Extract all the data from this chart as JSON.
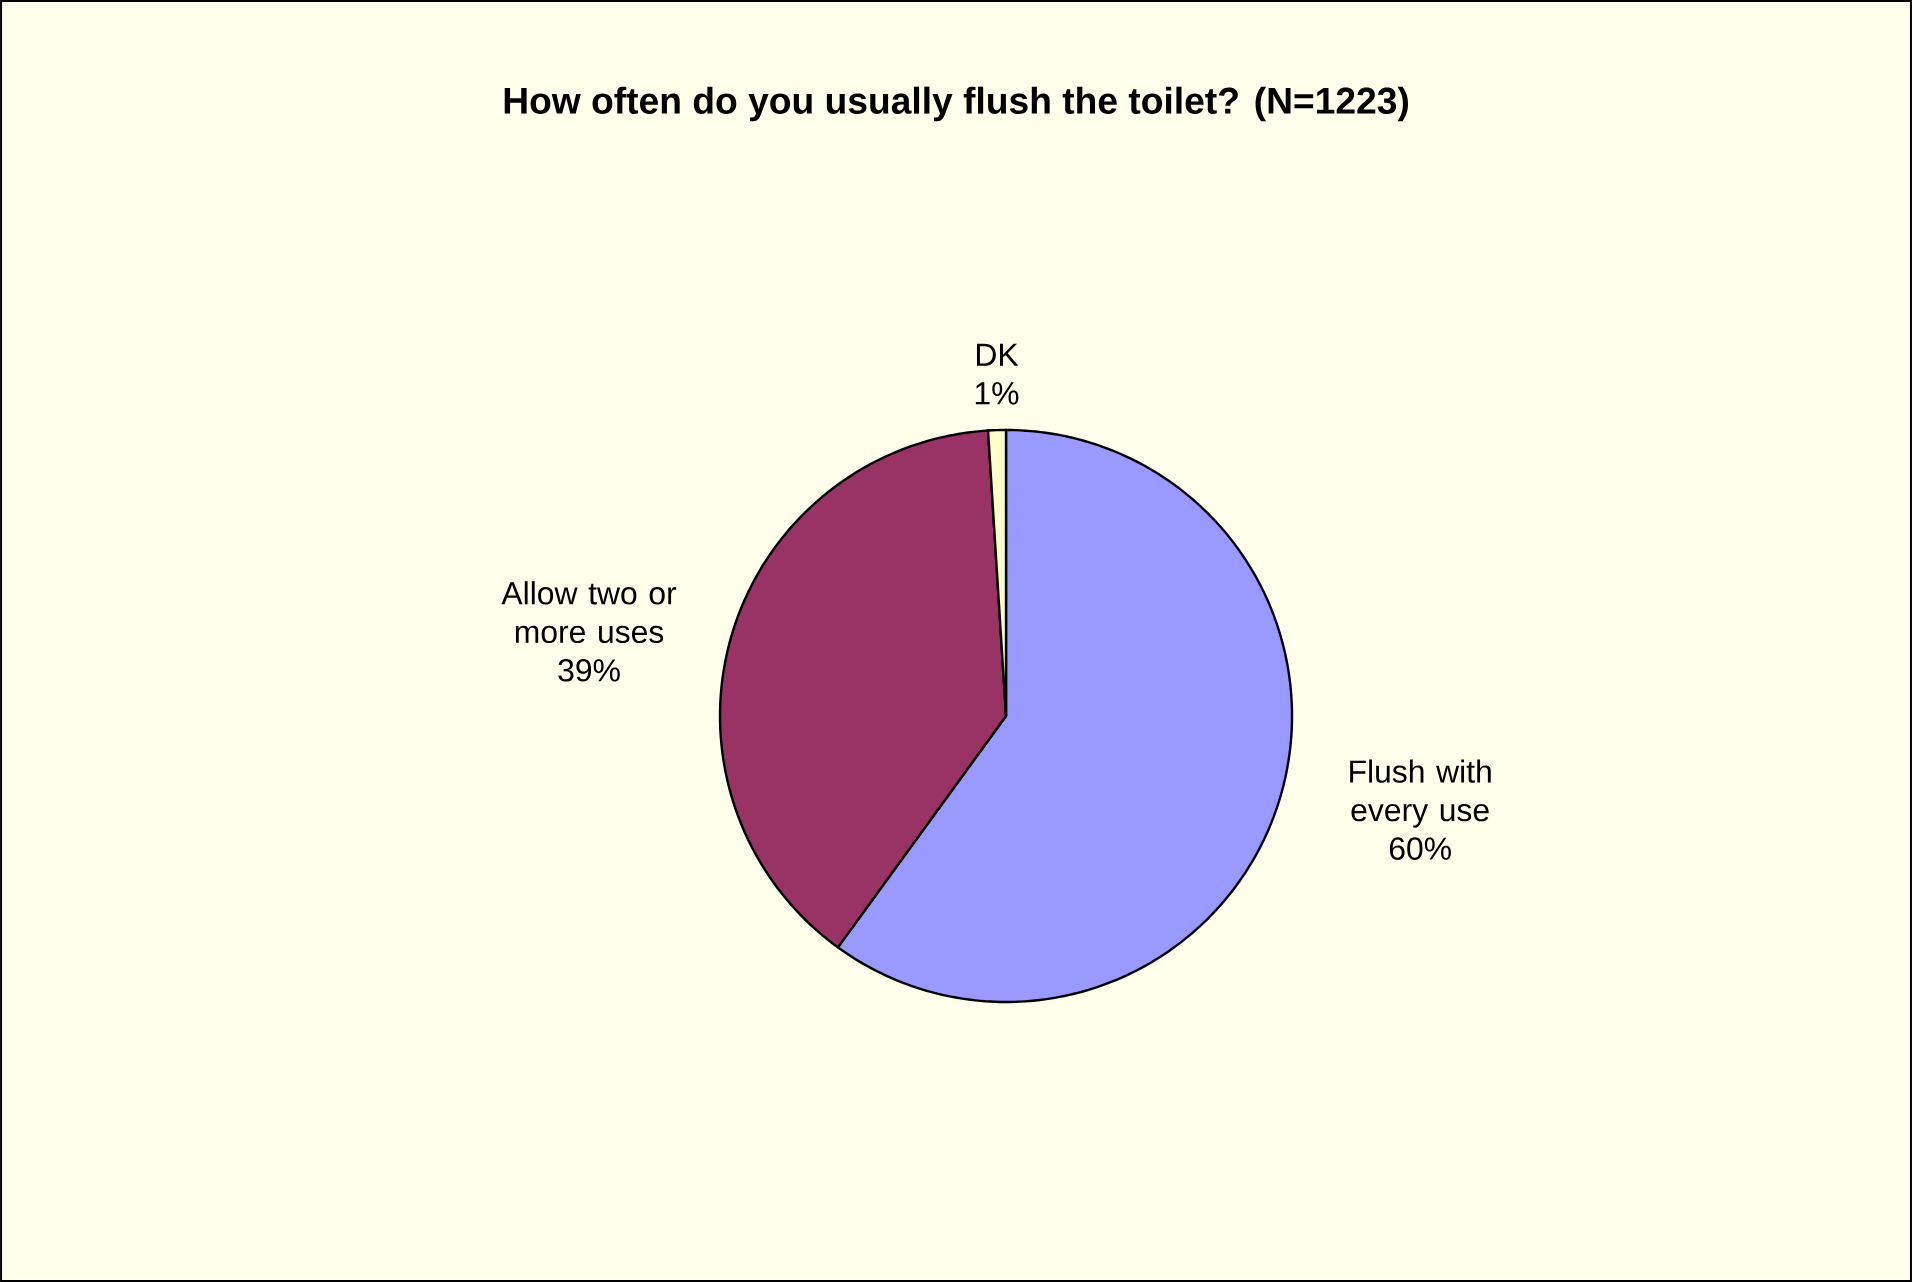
{
  "chart_data": {
    "type": "pie",
    "title": "How often do you usually flush the toilet? (N=1223)",
    "categories": [
      "Flush with every use",
      "Allow two or more uses",
      "DK"
    ],
    "values": [
      60,
      39,
      1
    ],
    "value_labels": [
      "60%",
      "39%",
      "1%"
    ],
    "colors": [
      "#9999ff",
      "#993366",
      "#ffffcc"
    ],
    "legend": false
  }
}
